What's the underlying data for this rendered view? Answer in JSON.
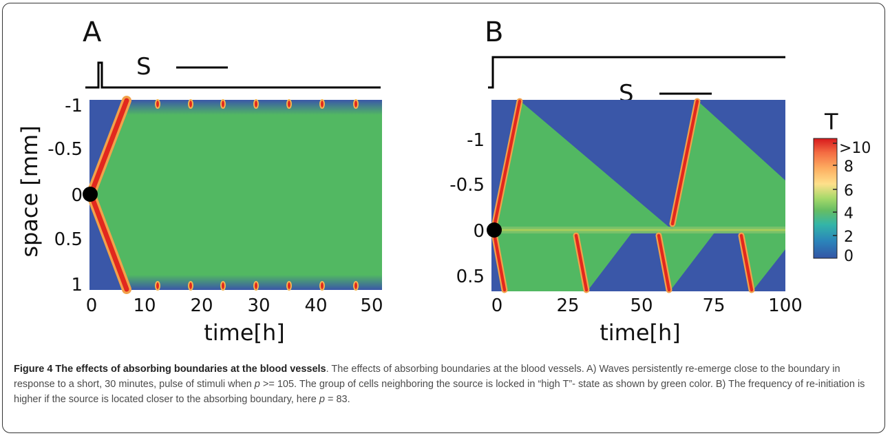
{
  "figure": {
    "panels": [
      {
        "letter": "A",
        "stimulus_label": "S",
        "xlabel": "time[h]",
        "ylabel": "space [mm]",
        "xticks": [
          "0",
          "10",
          "20",
          "30",
          "40",
          "50"
        ],
        "yticks": [
          "-1",
          "-0.5",
          "0",
          "0.5",
          "1"
        ]
      },
      {
        "letter": "B",
        "stimulus_label": "S",
        "xlabel": "time[h]",
        "xticks": [
          "0",
          "25",
          "50",
          "75",
          "100"
        ],
        "yticks": [
          "-1",
          "-0.5",
          "0",
          "0.5"
        ]
      }
    ],
    "colorbar": {
      "label": "T",
      "ticks": [
        ">10",
        "8",
        "6",
        "4",
        "2",
        "0"
      ],
      "colors": [
        "#d7191c",
        "#f46d43",
        "#fdae61",
        "#fee08b",
        "#a6d96a",
        "#66bd63",
        "#33b5a8",
        "#2b83ba",
        "#3355a5"
      ]
    },
    "colors": {
      "background_low": "#3a57a8",
      "high_t_state": "#52b862",
      "wave_front": "#e2281e"
    }
  },
  "caption": {
    "title": "Figure 4 The effects of absorbing boundaries at the blood vessels",
    "body_parts": [
      ". The effects of absorbing boundaries at the blood vessels. A) Waves persistently re-emerge close to the boundary in response to a short, 30 minutes, pulse of stimuli when ",
      "p",
      " >= 105. The group of cells neighboring the source is locked in “high T”- state as shown by green color. B) The frequency of re-initiation is higher if the source is located closer to the absorbing boundary, here ",
      "p",
      " = 83."
    ]
  }
}
